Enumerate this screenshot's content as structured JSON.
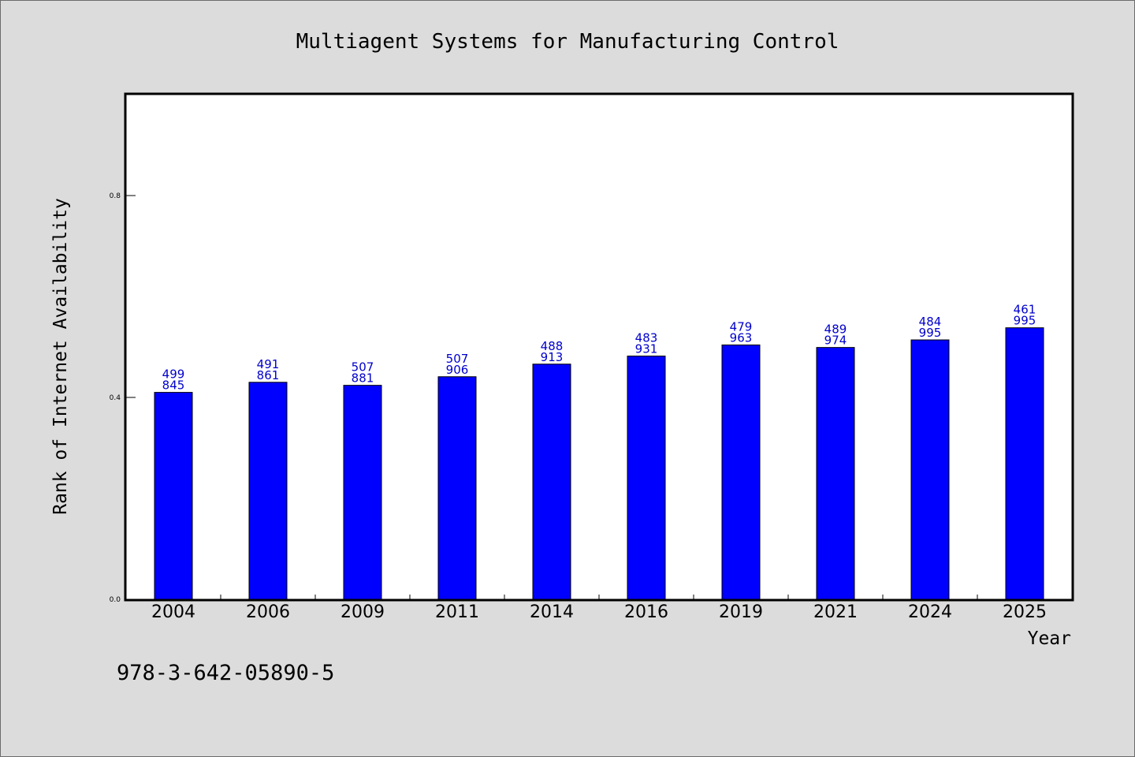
{
  "chart_data": {
    "type": "bar",
    "title": "Multiagent Systems for Manufacturing Control",
    "xlabel": "Year",
    "ylabel": "Rank of Internet Availability",
    "categories": [
      "2004",
      "2006",
      "2009",
      "2011",
      "2014",
      "2016",
      "2019",
      "2021",
      "2024",
      "2025"
    ],
    "values": [
      0.41,
      0.43,
      0.424,
      0.441,
      0.466,
      0.482,
      0.504,
      0.499,
      0.514,
      0.538
    ],
    "data_labels": [
      [
        "499",
        "845"
      ],
      [
        "491",
        "861"
      ],
      [
        "507",
        "881"
      ],
      [
        "507",
        "906"
      ],
      [
        "488",
        "913"
      ],
      [
        "483",
        "931"
      ],
      [
        "479",
        "963"
      ],
      [
        "489",
        "974"
      ],
      [
        "484",
        "995"
      ],
      [
        "461",
        "995"
      ]
    ],
    "ylim": [
      0,
      1.0
    ],
    "yticks": [
      0.0,
      0.4,
      0.8
    ],
    "ytick_labels": [
      "0.0",
      "0.4",
      "0.8"
    ],
    "bar_color": "#0000ff",
    "label_color": "#0000cc",
    "grid": false,
    "legend": "none"
  },
  "footer": {
    "isbn": "978-3-642-05890-5"
  }
}
